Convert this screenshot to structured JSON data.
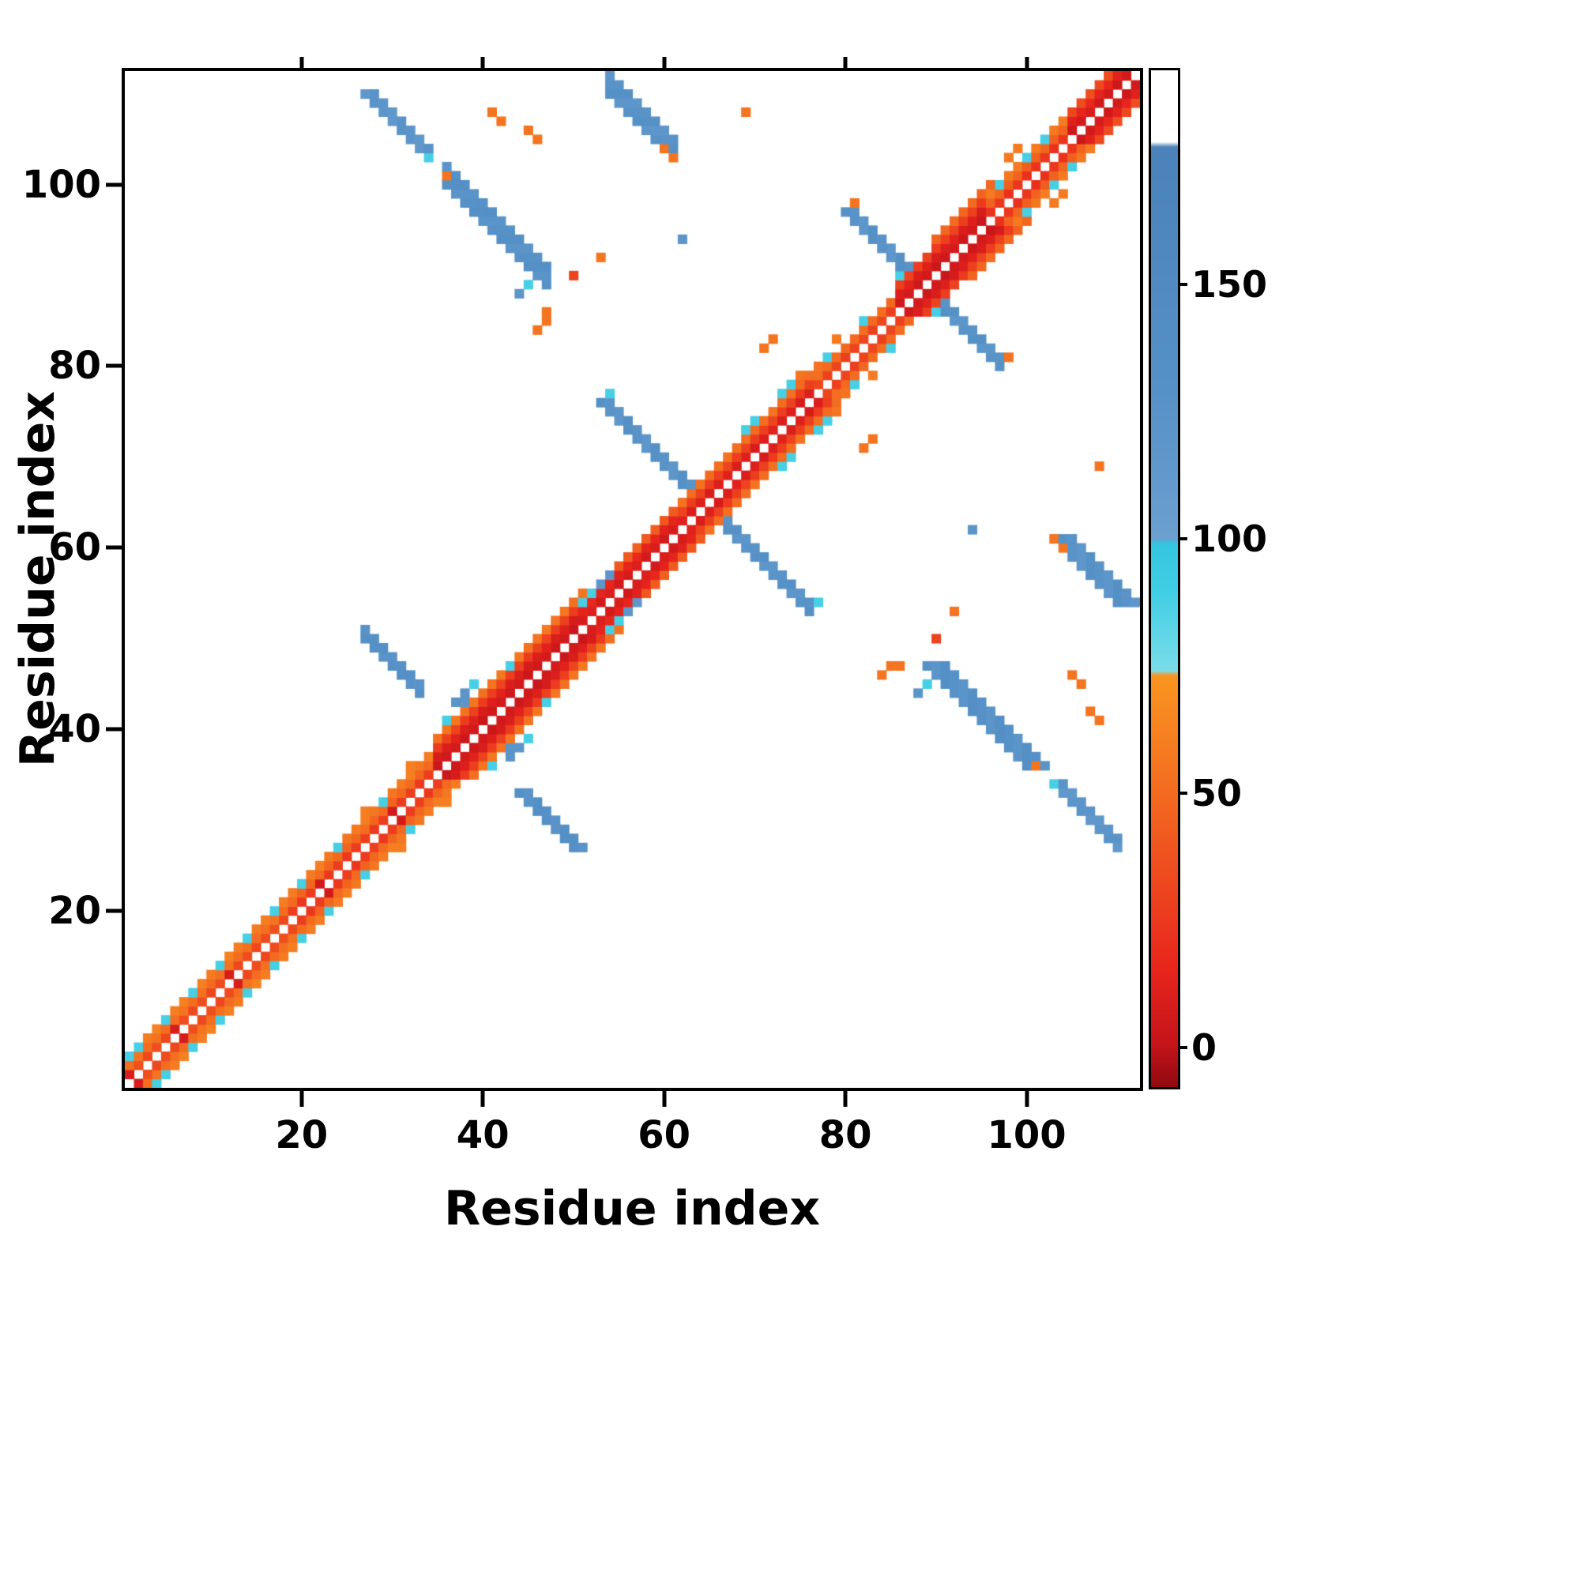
{
  "chart_data": {
    "type": "heatmap",
    "title": "",
    "xlabel": "Residue index",
    "ylabel": "Residue index",
    "x_range": [
      1,
      112
    ],
    "y_range": [
      1,
      112
    ],
    "x_ticks": [
      20,
      40,
      60,
      80,
      100
    ],
    "y_ticks": [
      20,
      40,
      60,
      80,
      100
    ],
    "n": 112,
    "symmetric": true,
    "grid": false,
    "legend_position": "right-colorbar",
    "colorbar": {
      "min": -8,
      "max": 192,
      "ticks": [
        0,
        50,
        100,
        150
      ]
    },
    "colormap_stops": [
      [
        -8,
        "#8f0a10"
      ],
      [
        0,
        "#c3131a"
      ],
      [
        15,
        "#e8251d"
      ],
      [
        40,
        "#f0571f"
      ],
      [
        60,
        "#f57e20"
      ],
      [
        73,
        "#f99420"
      ],
      [
        74,
        "#7adce8"
      ],
      [
        90,
        "#3fcde4"
      ],
      [
        99,
        "#35c6df"
      ],
      [
        100,
        "#6b9fd0"
      ],
      [
        130,
        "#5590c6"
      ],
      [
        177,
        "#4a82b9"
      ],
      [
        178,
        "#ffffff"
      ],
      [
        192,
        "#ffffff"
      ]
    ],
    "features": {
      "diag_segments": [
        {
          "from": 1,
          "to": 19,
          "offsets": {
            "1": 34,
            "2": 52,
            "3": 60
          }
        },
        {
          "from": 19,
          "to": 35,
          "offsets": {
            "1": 26,
            "2": 48,
            "3": 58
          }
        },
        {
          "from": 35,
          "to": 51,
          "offsets": {
            "1": 5,
            "2": 10,
            "3": 28,
            "4": 55
          }
        },
        {
          "from": 51,
          "to": 62,
          "offsets": {
            "1": 8,
            "2": 14,
            "3": 42
          }
        },
        {
          "from": 62,
          "to": 77,
          "offsets": {
            "1": 10,
            "2": 28,
            "3": 52
          }
        },
        {
          "from": 77,
          "to": 86,
          "offsets": {
            "1": 30,
            "2": 50
          }
        },
        {
          "from": 86,
          "to": 96,
          "offsets": {
            "1": 5,
            "2": 10,
            "3": 28
          }
        },
        {
          "from": 90,
          "to": 96,
          "offsets": {
            "4": 48
          }
        },
        {
          "from": 96,
          "to": 105,
          "offsets": {
            "1": 22,
            "2": 45,
            "3": 58
          }
        },
        {
          "from": 105,
          "to": 111,
          "offsets": {
            "1": 6,
            "2": 14,
            "3": 34
          }
        }
      ],
      "anti_streaks": [
        {
          "s": 78,
          "i0": 27,
          "i1": 33,
          "w": 2,
          "v": 130
        },
        {
          "s": 130,
          "i0": 54,
          "i1": 76,
          "w": 2,
          "v": 124
        },
        {
          "s": 178,
          "i0": 81,
          "i1": 97,
          "w": 2,
          "v": 124
        },
        {
          "s": 138,
          "i0": 36,
          "i1": 47,
          "w": 3,
          "v": 128
        },
        {
          "s": 166,
          "i0": 54,
          "i1": 61,
          "w": 3,
          "v": 124
        },
        {
          "s": 138,
          "i0": 104,
          "i1": 110,
          "w": 2,
          "v": 120
        }
      ],
      "cells": [
        [
          1,
          4,
          88
        ],
        [
          2,
          5,
          88
        ],
        [
          5,
          8,
          88
        ],
        [
          8,
          11,
          88
        ],
        [
          11,
          14,
          88
        ],
        [
          14,
          17,
          88
        ],
        [
          17,
          20,
          88
        ],
        [
          1,
          2,
          8
        ],
        [
          6,
          7,
          8
        ],
        [
          12,
          13,
          8
        ],
        [
          20,
          23,
          88
        ],
        [
          24,
          27,
          88
        ],
        [
          29,
          32,
          88
        ],
        [
          27,
          31,
          60
        ],
        [
          32,
          36,
          60
        ],
        [
          22,
          23,
          6
        ],
        [
          30,
          31,
          6
        ],
        [
          36,
          41,
          88
        ],
        [
          39,
          45,
          88
        ],
        [
          43,
          47,
          88
        ],
        [
          37,
          43,
          120
        ],
        [
          38,
          43,
          120
        ],
        [
          38,
          44,
          120
        ],
        [
          51,
          54,
          88
        ],
        [
          52,
          55,
          88
        ],
        [
          53,
          56,
          118
        ],
        [
          54,
          57,
          118
        ],
        [
          69,
          73,
          88
        ],
        [
          70,
          74,
          88
        ],
        [
          73,
          77,
          88
        ],
        [
          74,
          78,
          88
        ],
        [
          75,
          79,
          55
        ],
        [
          78,
          81,
          88
        ],
        [
          82,
          85,
          88
        ],
        [
          79,
          83,
          58
        ],
        [
          86,
          90,
          88
        ],
        [
          97,
          100,
          88
        ],
        [
          100,
          103,
          88
        ],
        [
          102,
          105,
          88
        ],
        [
          98,
          103,
          58
        ],
        [
          99,
          104,
          58
        ],
        [
          46,
          84,
          55
        ],
        [
          47,
          85,
          55
        ],
        [
          47,
          86,
          55
        ],
        [
          53,
          92,
          55
        ],
        [
          50,
          90,
          30
        ],
        [
          62,
          94,
          120
        ],
        [
          44,
          88,
          120
        ],
        [
          45,
          89,
          88
        ],
        [
          82,
          71,
          55
        ],
        [
          83,
          72,
          55
        ],
        [
          81,
          98,
          55
        ],
        [
          108,
          69,
          55
        ],
        [
          41,
          108,
          55
        ],
        [
          42,
          107,
          55
        ],
        [
          105,
          46,
          55
        ],
        [
          106,
          45,
          55
        ],
        [
          101,
          36,
          55
        ],
        [
          34,
          103,
          88
        ],
        [
          54,
          77,
          88
        ],
        [
          60,
          104,
          55
        ],
        [
          61,
          103,
          55
        ]
      ]
    }
  }
}
